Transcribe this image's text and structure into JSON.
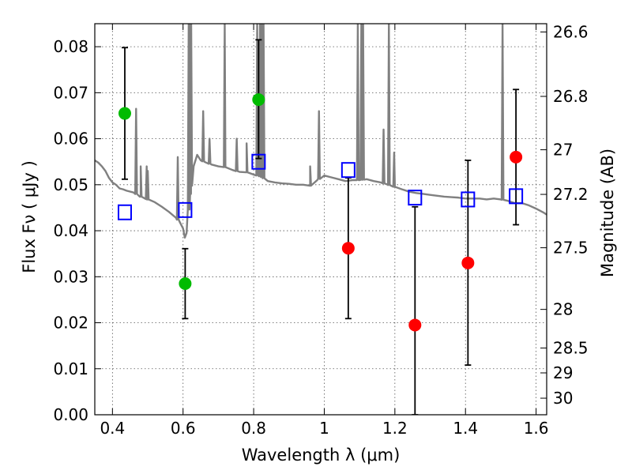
{
  "chart_data": {
    "type": "scatter",
    "xlabel": "Wavelength  λ (μm)",
    "ylabel": "Flux  Fν  ( μJy )",
    "y2label": "Magnitude (AB)",
    "xlim": [
      0.35,
      1.63
    ],
    "ylim": [
      0.0,
      0.085
    ],
    "grid": true,
    "x_ticks": [
      0.4,
      0.6,
      0.8,
      1.0,
      1.2,
      1.4,
      1.6
    ],
    "x_tick_labels": [
      "0.4",
      "0.6",
      "0.8",
      "1",
      "1.2",
      "1.4",
      "1.6"
    ],
    "y_ticks": [
      0.0,
      0.01,
      0.02,
      0.03,
      0.04,
      0.05,
      0.06,
      0.07,
      0.08
    ],
    "y_tick_labels": [
      "0.00",
      "0.01",
      "0.02",
      "0.03",
      "0.04",
      "0.05",
      "0.06",
      "0.07",
      "0.08"
    ],
    "y2_ticks": [
      {
        "label": "26.6",
        "flux": 0.0832
      },
      {
        "label": "26.8",
        "flux": 0.0692
      },
      {
        "label": "27",
        "flux": 0.0576
      },
      {
        "label": "27.2",
        "flux": 0.0479
      },
      {
        "label": "27.5",
        "flux": 0.0363
      },
      {
        "label": "28",
        "flux": 0.0229
      },
      {
        "label": "28.5",
        "flux": 0.0145
      },
      {
        "label": "29",
        "flux": 0.0091
      },
      {
        "label": "30",
        "flux": 0.0036
      }
    ],
    "series": [
      {
        "color": "#00bb00",
        "marker": "circle",
        "points": [
          {
            "x": 0.435,
            "y": 0.0655,
            "ylow": 0.0512,
            "yhigh": 0.0798
          },
          {
            "x": 0.606,
            "y": 0.0285,
            "ylow": 0.0209,
            "yhigh": 0.0361
          },
          {
            "x": 0.814,
            "y": 0.0685,
            "ylow": 0.0557,
            "yhigh": 0.0815
          }
        ]
      },
      {
        "color": "#ff0000",
        "marker": "circle",
        "points": [
          {
            "x": 1.068,
            "y": 0.0362,
            "ylow": 0.0209,
            "yhigh": 0.0515
          },
          {
            "x": 1.257,
            "y": 0.0195,
            "ylow": 0.0,
            "yhigh": 0.0452
          },
          {
            "x": 1.407,
            "y": 0.033,
            "ylow": 0.0108,
            "yhigh": 0.0553
          },
          {
            "x": 1.543,
            "y": 0.056,
            "ylow": 0.0413,
            "yhigh": 0.0707
          }
        ]
      },
      {
        "color": "#0000ff",
        "marker": "open-square",
        "points": [
          {
            "x": 0.435,
            "y": 0.044
          },
          {
            "x": 0.606,
            "y": 0.0445
          },
          {
            "x": 0.814,
            "y": 0.055
          },
          {
            "x": 1.068,
            "y": 0.0532
          },
          {
            "x": 1.257,
            "y": 0.0472
          },
          {
            "x": 1.407,
            "y": 0.0468
          },
          {
            "x": 1.543,
            "y": 0.0475
          }
        ]
      }
    ],
    "model_spectrum": {
      "color": "#808080",
      "continuum": [
        [
          0.35,
          0.0553
        ],
        [
          0.36,
          0.0548
        ],
        [
          0.37,
          0.054
        ],
        [
          0.38,
          0.053
        ],
        [
          0.39,
          0.0515
        ],
        [
          0.4,
          0.0505
        ],
        [
          0.41,
          0.05
        ],
        [
          0.42,
          0.0492
        ],
        [
          0.43,
          0.049
        ],
        [
          0.44,
          0.0487
        ],
        [
          0.46,
          0.0483
        ],
        [
          0.48,
          0.0474
        ],
        [
          0.5,
          0.0468
        ],
        [
          0.52,
          0.0462
        ],
        [
          0.54,
          0.0452
        ],
        [
          0.56,
          0.0441
        ],
        [
          0.58,
          0.0428
        ],
        [
          0.59,
          0.042
        ],
        [
          0.6,
          0.0405
        ],
        [
          0.605,
          0.0385
        ],
        [
          0.61,
          0.0395
        ],
        [
          0.62,
          0.048
        ],
        [
          0.63,
          0.054
        ],
        [
          0.64,
          0.0565
        ],
        [
          0.65,
          0.0553
        ],
        [
          0.66,
          0.055
        ],
        [
          0.68,
          0.0544
        ],
        [
          0.7,
          0.054
        ],
        [
          0.72,
          0.0538
        ],
        [
          0.74,
          0.0532
        ],
        [
          0.76,
          0.0528
        ],
        [
          0.78,
          0.0527
        ],
        [
          0.8,
          0.0522
        ],
        [
          0.82,
          0.0518
        ],
        [
          0.84,
          0.0508
        ],
        [
          0.86,
          0.0505
        ],
        [
          0.88,
          0.0503
        ],
        [
          0.9,
          0.0502
        ],
        [
          0.92,
          0.05
        ],
        [
          0.94,
          0.05
        ],
        [
          0.96,
          0.0498
        ],
        [
          0.98,
          0.051
        ],
        [
          1.0,
          0.052
        ],
        [
          1.02,
          0.0516
        ],
        [
          1.04,
          0.0512
        ],
        [
          1.06,
          0.0508
        ],
        [
          1.08,
          0.051
        ],
        [
          1.1,
          0.051
        ],
        [
          1.12,
          0.0512
        ],
        [
          1.14,
          0.0508
        ],
        [
          1.16,
          0.0505
        ],
        [
          1.18,
          0.05
        ],
        [
          1.2,
          0.0495
        ],
        [
          1.22,
          0.049
        ],
        [
          1.24,
          0.0485
        ],
        [
          1.26,
          0.0482
        ],
        [
          1.28,
          0.048
        ],
        [
          1.3,
          0.0478
        ],
        [
          1.32,
          0.0476
        ],
        [
          1.34,
          0.0474
        ],
        [
          1.36,
          0.0473
        ],
        [
          1.38,
          0.0472
        ],
        [
          1.4,
          0.047
        ],
        [
          1.42,
          0.047
        ],
        [
          1.44,
          0.047
        ],
        [
          1.46,
          0.0468
        ],
        [
          1.48,
          0.047
        ],
        [
          1.5,
          0.0468
        ],
        [
          1.52,
          0.0465
        ],
        [
          1.54,
          0.046
        ],
        [
          1.56,
          0.046
        ],
        [
          1.58,
          0.0455
        ],
        [
          1.6,
          0.0448
        ],
        [
          1.62,
          0.044
        ],
        [
          1.63,
          0.0435
        ]
      ],
      "lines": [
        [
          0.467,
          0.0665
        ],
        [
          0.48,
          0.054
        ],
        [
          0.497,
          0.054
        ],
        [
          0.5,
          0.053
        ],
        [
          0.585,
          0.056
        ],
        [
          0.616,
          0.085
        ],
        [
          0.62,
          0.085
        ],
        [
          0.623,
          0.085
        ],
        [
          0.657,
          0.066
        ],
        [
          0.675,
          0.06
        ],
        [
          0.718,
          0.085
        ],
        [
          0.752,
          0.06
        ],
        [
          0.78,
          0.059
        ],
        [
          0.81,
          0.085
        ],
        [
          0.818,
          0.085
        ],
        [
          0.823,
          0.085
        ],
        [
          0.828,
          0.085
        ],
        [
          0.96,
          0.054
        ],
        [
          0.985,
          0.066
        ],
        [
          1.095,
          0.085
        ],
        [
          1.105,
          0.085
        ],
        [
          1.11,
          0.085
        ],
        [
          1.168,
          0.062
        ],
        [
          1.183,
          0.085
        ],
        [
          1.198,
          0.057
        ],
        [
          1.505,
          0.085
        ]
      ]
    }
  }
}
